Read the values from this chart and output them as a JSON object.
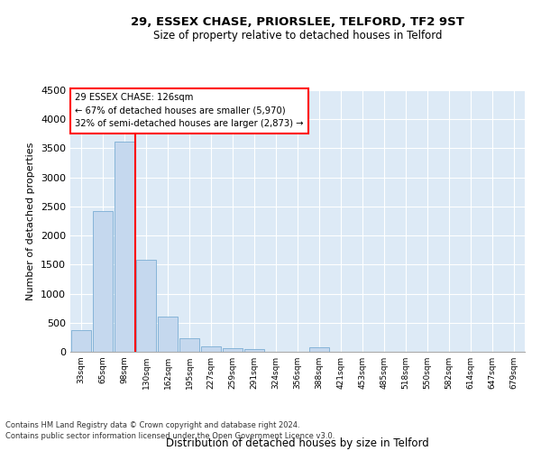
{
  "title": "29, ESSEX CHASE, PRIORSLEE, TELFORD, TF2 9ST",
  "subtitle": "Size of property relative to detached houses in Telford",
  "xlabel": "Distribution of detached houses by size in Telford",
  "ylabel": "Number of detached properties",
  "bar_color": "#c5d8ee",
  "bar_edge_color": "#7aadd4",
  "background_color": "#ddeaf6",
  "grid_color": "#ffffff",
  "categories": [
    "33sqm",
    "65sqm",
    "98sqm",
    "130sqm",
    "162sqm",
    "195sqm",
    "227sqm",
    "259sqm",
    "291sqm",
    "324sqm",
    "356sqm",
    "388sqm",
    "421sqm",
    "453sqm",
    "485sqm",
    "518sqm",
    "550sqm",
    "582sqm",
    "614sqm",
    "647sqm",
    "679sqm"
  ],
  "values": [
    380,
    2420,
    3620,
    1580,
    600,
    240,
    100,
    60,
    40,
    0,
    0,
    70,
    0,
    0,
    0,
    0,
    0,
    0,
    0,
    0,
    0
  ],
  "ylim": [
    0,
    4500
  ],
  "yticks": [
    0,
    500,
    1000,
    1500,
    2000,
    2500,
    3000,
    3500,
    4000,
    4500
  ],
  "annotation_title": "29 ESSEX CHASE: 126sqm",
  "annotation_line1": "← 67% of detached houses are smaller (5,970)",
  "annotation_line2": "32% of semi-detached houses are larger (2,873) →",
  "footer_line1": "Contains HM Land Registry data © Crown copyright and database right 2024.",
  "footer_line2": "Contains public sector information licensed under the Open Government Licence v3.0.",
  "vline_x": 2.5
}
